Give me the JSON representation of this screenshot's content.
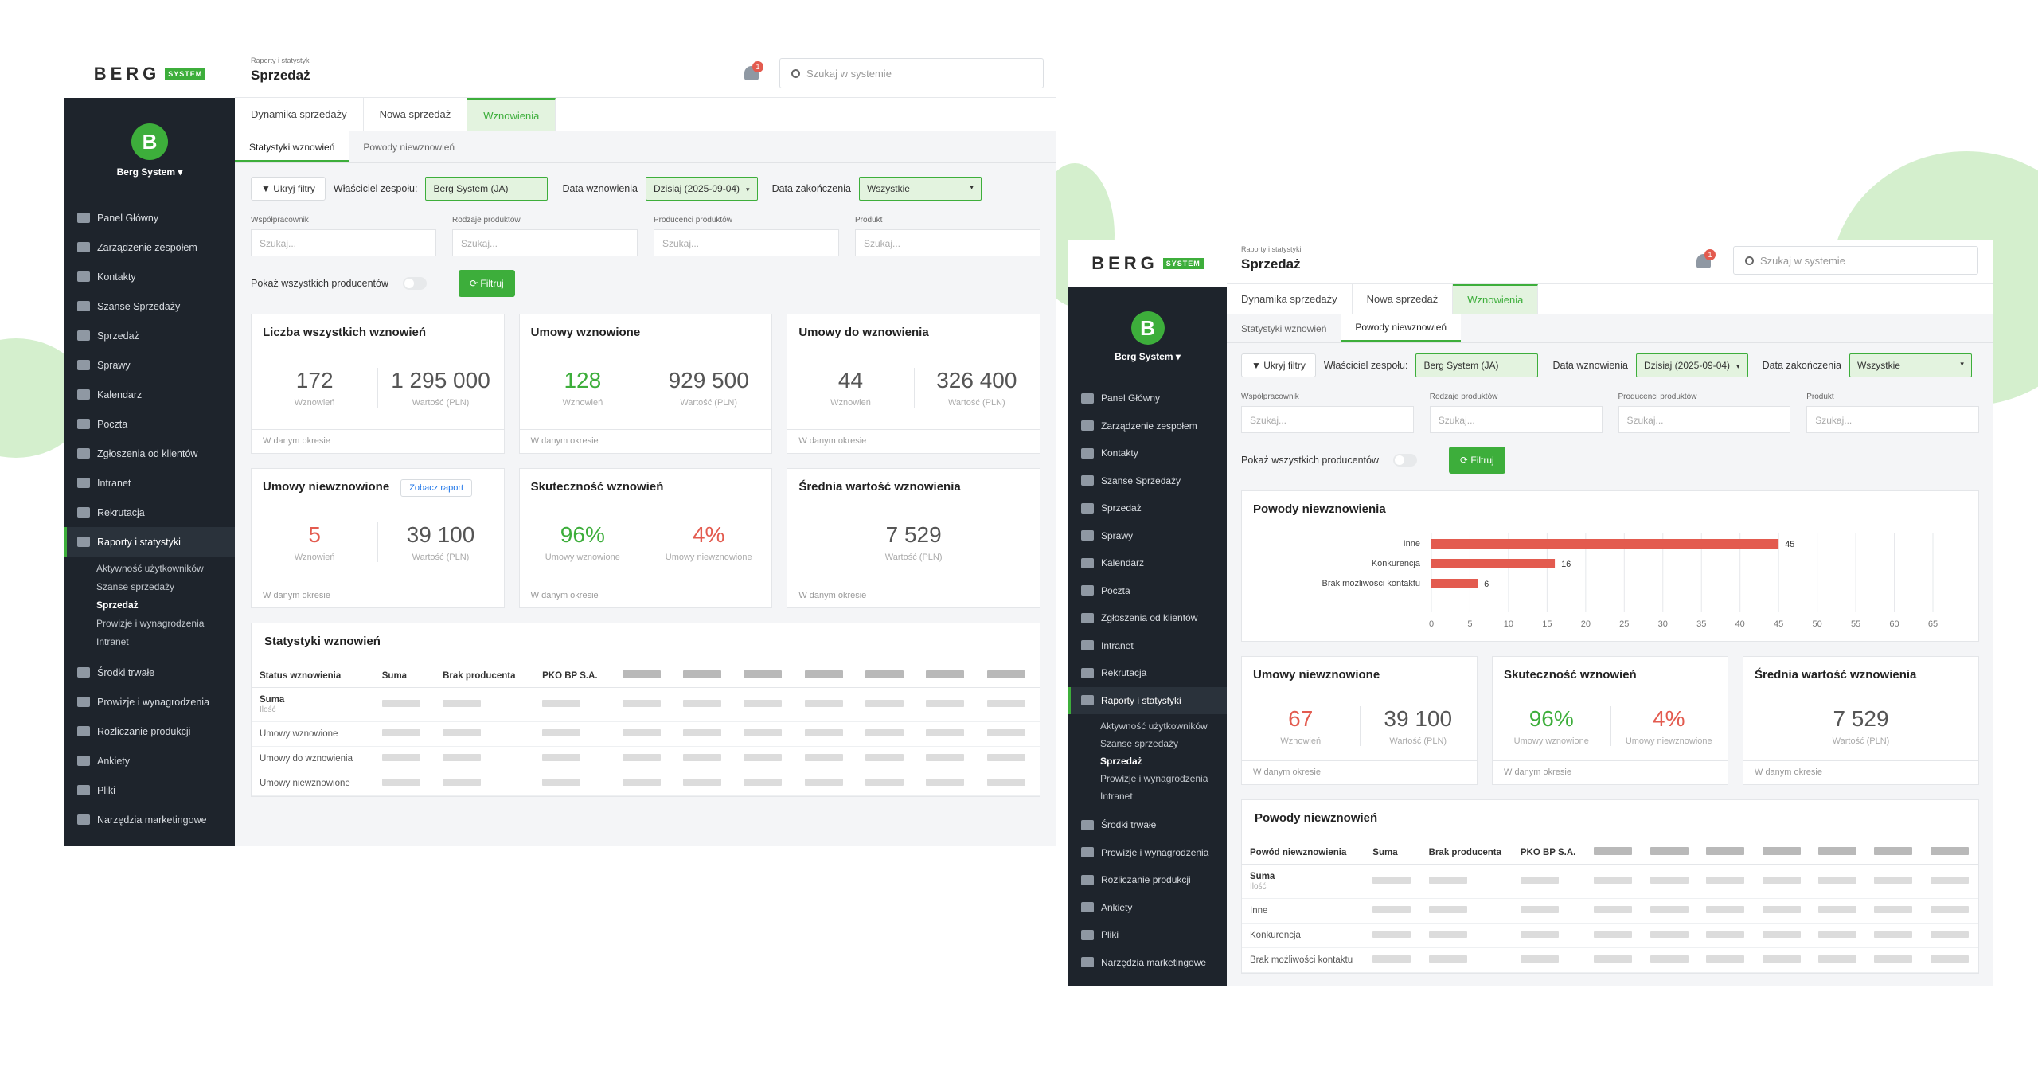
{
  "brand": {
    "name": "BERG",
    "tag": "SYSTEM"
  },
  "user": {
    "initial": "B",
    "name": "Berg System"
  },
  "nav": [
    {
      "label": "Panel Główny"
    },
    {
      "label": "Zarządzenie zespołem"
    },
    {
      "label": "Kontakty"
    },
    {
      "label": "Szanse Sprzedaży"
    },
    {
      "label": "Sprzedaż"
    },
    {
      "label": "Sprawy"
    },
    {
      "label": "Kalendarz"
    },
    {
      "label": "Poczta"
    },
    {
      "label": "Zgłoszenia od klientów"
    },
    {
      "label": "Intranet"
    },
    {
      "label": "Rekrutacja"
    },
    {
      "label": "Raporty i statystyki"
    },
    {
      "label": "Środki trwałe"
    },
    {
      "label": "Prowizje i wynagrodzenia"
    },
    {
      "label": "Rozliczanie produkcji"
    },
    {
      "label": "Ankiety"
    },
    {
      "label": "Pliki"
    },
    {
      "label": "Narzędzia marketingowe"
    }
  ],
  "subnav": [
    "Aktywność użytkowników",
    "Szanse sprzedaży",
    "Sprzedaż",
    "Prowizje i wynagrodzenia",
    "Intranet"
  ],
  "header": {
    "crumb": "Raporty i statystyki",
    "title": "Sprzedaż",
    "notif": "1",
    "search_placeholder": "Szukaj w systemie"
  },
  "tabs": [
    "Dynamika sprzedaży",
    "Nowa sprzedaż",
    "Wznowienia"
  ],
  "subtabs": [
    "Statystyki wznowień",
    "Powody niewznowień"
  ],
  "filters": {
    "hide": "Ukryj filtry",
    "owner_label": "Właściciel zespołu:",
    "owner": "Berg System (JA)",
    "date_label": "Data wznowienia",
    "date": "Dzisiaj (2025-09-04)",
    "end_label": "Data zakończenia",
    "end": "Wszystkie",
    "fields": [
      "Współpracownik",
      "Rodzaje produktów",
      "Producenci produktów",
      "Produkt"
    ],
    "field_ph": "Szukaj...",
    "show_all": "Pokaż wszystkich producentów",
    "filter_btn": "Filtruj"
  },
  "cards": {
    "all": {
      "title": "Liczba wszystkich wznowień",
      "a": "172",
      "a_cap": "Wznowień",
      "b": "1 295 000",
      "b_cap": "Wartość (PLN)"
    },
    "renewed": {
      "title": "Umowy wznowione",
      "a": "128",
      "a_cap": "Wznowień",
      "b": "929 500",
      "b_cap": "Wartość (PLN)"
    },
    "to_renew": {
      "title": "Umowy do wznowienia",
      "a": "44",
      "a_cap": "Wznowień",
      "b": "326 400",
      "b_cap": "Wartość (PLN)"
    },
    "not": {
      "title": "Umowy niewznowione",
      "link": "Zobacz raport",
      "a": "5",
      "a2": "67",
      "a_cap": "Wznowień",
      "b": "39 100",
      "b_cap": "Wartość (PLN)"
    },
    "eff": {
      "title": "Skuteczność wznowień",
      "a": "96%",
      "a_cap": "Umowy wznowione",
      "b": "4%",
      "b_cap": "Umowy niewznowione"
    },
    "avg": {
      "title": "Średnia wartość wznowienia",
      "a": "7 529",
      "a_cap": "Wartość (PLN)"
    },
    "footer": "W danym okresie"
  },
  "table1": {
    "title": "Statystyki wznowień",
    "cols": [
      "Status wznowienia",
      "Suma",
      "Brak producenta",
      "PKO BP S.A."
    ],
    "rows": [
      "Umowy wznowione",
      "Umowy do wznowienia",
      "Umowy niewznowione"
    ],
    "sum": "Suma",
    "sum_sub": "Ilość"
  },
  "table2": {
    "title": "Powody niewznowień",
    "cols": [
      "Powód niewznowienia",
      "Suma",
      "Brak producenta",
      "PKO BP S.A."
    ],
    "rows": [
      "Inne",
      "Konkurencja",
      "Brak możliwości kontaktu"
    ],
    "sum": "Suma",
    "sum_sub": "Ilość"
  },
  "chart_data": {
    "type": "bar",
    "orientation": "horizontal",
    "title": "Powody niewznowienia",
    "categories": [
      "Inne",
      "Konkurencja",
      "Brak możliwości kontaktu"
    ],
    "values": [
      45,
      16,
      6
    ],
    "xlim": [
      0,
      65
    ],
    "xticks": [
      0,
      5,
      10,
      15,
      20,
      25,
      30,
      35,
      40,
      45,
      50,
      55,
      60,
      65
    ],
    "color": "#e35b4f",
    "grid": true
  }
}
